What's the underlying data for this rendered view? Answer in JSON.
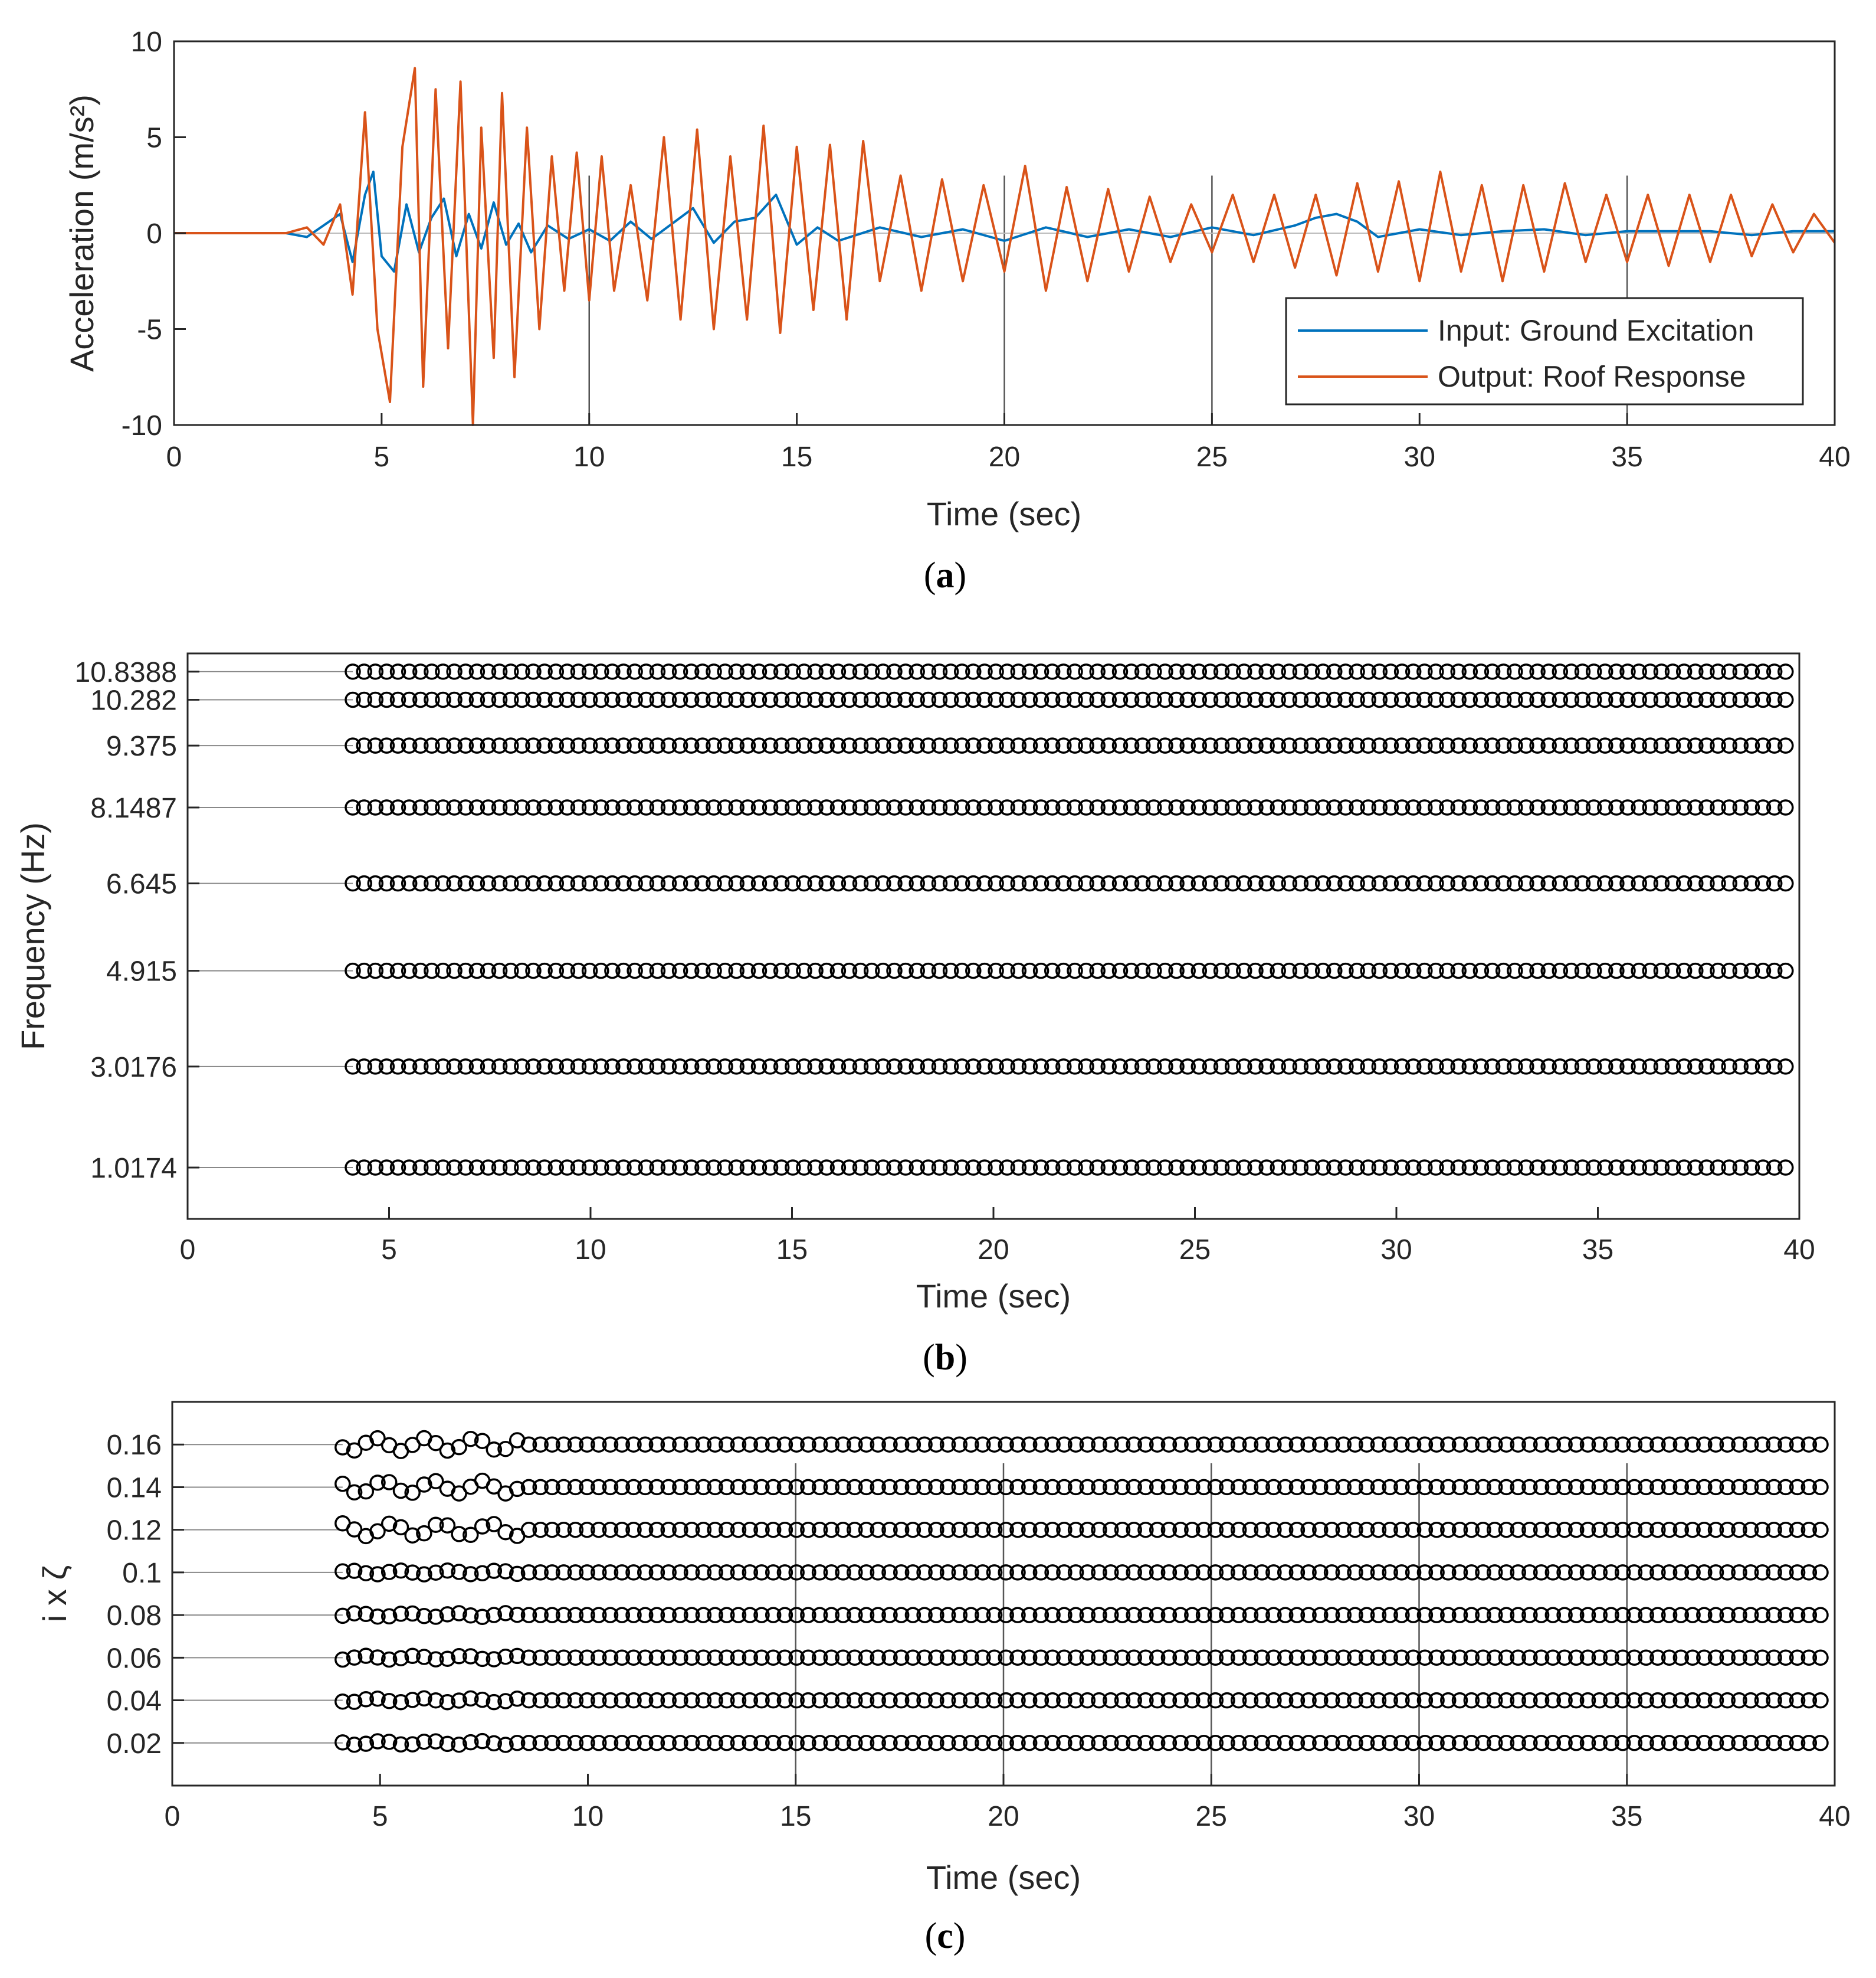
{
  "chart_data": [
    {
      "id": "a",
      "type": "line",
      "caption": "a",
      "xlabel": "Time (sec)",
      "ylabel": "Acceleration (m/s²)",
      "xlim": [
        0,
        40
      ],
      "ylim": [
        -10,
        10
      ],
      "xticks": [
        0,
        5,
        10,
        15,
        20,
        25,
        30,
        35,
        40
      ],
      "yticks": [
        -10,
        -5,
        0,
        5,
        10
      ],
      "vertical_markers": [
        10,
        20,
        25,
        35
      ],
      "legend_position": "bottom-right",
      "series": [
        {
          "name": "Input: Ground Excitation",
          "color": "#0072BD",
          "x": [
            0,
            2.7,
            3.2,
            3.6,
            4.0,
            4.3,
            4.6,
            4.8,
            5.0,
            5.3,
            5.6,
            5.9,
            6.2,
            6.5,
            6.8,
            7.1,
            7.4,
            7.7,
            8.0,
            8.3,
            8.6,
            9.0,
            9.5,
            10.0,
            10.5,
            11.0,
            11.5,
            12.0,
            12.5,
            13.0,
            13.5,
            14.0,
            14.5,
            15.0,
            15.5,
            16.0,
            17.0,
            18.0,
            19.0,
            20.0,
            21.0,
            22.0,
            23.0,
            24.0,
            25.0,
            26.0,
            27.0,
            27.5,
            28.0,
            28.5,
            29.0,
            30.0,
            31.0,
            32.0,
            33.0,
            34.0,
            35.0,
            36.0,
            37.0,
            38.0,
            39.0,
            40.0
          ],
          "values": [
            0,
            0,
            -0.2,
            0.4,
            1.0,
            -1.5,
            2.0,
            3.2,
            -1.2,
            -2.0,
            1.5,
            -1.0,
            0.8,
            1.8,
            -1.2,
            1.0,
            -0.8,
            1.6,
            -0.6,
            0.5,
            -1.0,
            0.4,
            -0.3,
            0.2,
            -0.4,
            0.6,
            -0.3,
            0.5,
            1.3,
            -0.5,
            0.6,
            0.8,
            2.0,
            -0.6,
            0.3,
            -0.4,
            0.3,
            -0.2,
            0.2,
            -0.4,
            0.3,
            -0.2,
            0.2,
            -0.2,
            0.3,
            -0.1,
            0.4,
            0.8,
            1.0,
            0.6,
            -0.2,
            0.2,
            -0.1,
            0.1,
            0.2,
            -0.1,
            0.1,
            0.1,
            0.1,
            -0.1,
            0.1,
            0.1
          ]
        },
        {
          "name": "Output: Roof Response",
          "color": "#D95319",
          "x": [
            0,
            2.7,
            3.2,
            3.6,
            4.0,
            4.3,
            4.6,
            4.9,
            5.2,
            5.5,
            5.8,
            6.0,
            6.3,
            6.6,
            6.9,
            7.2,
            7.4,
            7.7,
            7.9,
            8.2,
            8.5,
            8.8,
            9.1,
            9.4,
            9.7,
            10.0,
            10.3,
            10.6,
            11.0,
            11.4,
            11.8,
            12.2,
            12.6,
            13.0,
            13.4,
            13.8,
            14.2,
            14.6,
            15.0,
            15.4,
            15.8,
            16.2,
            16.6,
            17.0,
            17.5,
            18.0,
            18.5,
            19.0,
            19.5,
            20.0,
            20.5,
            21.0,
            21.5,
            22.0,
            22.5,
            23.0,
            23.5,
            24.0,
            24.5,
            25.0,
            25.5,
            26.0,
            26.5,
            27.0,
            27.5,
            28.0,
            28.5,
            29.0,
            29.5,
            30.0,
            30.5,
            31.0,
            31.5,
            32.0,
            32.5,
            33.0,
            33.5,
            34.0,
            34.5,
            35.0,
            35.5,
            36.0,
            36.5,
            37.0,
            37.5,
            38.0,
            38.5,
            39.0,
            39.5,
            40.0
          ],
          "values": [
            0,
            0,
            0.3,
            -0.6,
            1.5,
            -3.2,
            6.3,
            -5.0,
            -8.8,
            4.5,
            8.6,
            -8.0,
            7.5,
            -6.0,
            7.9,
            -10.0,
            5.5,
            -6.5,
            7.3,
            -7.5,
            5.5,
            -5.0,
            4.0,
            -3.0,
            4.2,
            -3.5,
            4.0,
            -3.0,
            2.5,
            -3.5,
            5.0,
            -4.5,
            5.4,
            -5.0,
            4.0,
            -4.5,
            5.6,
            -5.2,
            4.5,
            -4.0,
            4.6,
            -4.5,
            4.8,
            -2.5,
            3.0,
            -3.0,
            2.8,
            -2.5,
            2.5,
            -2.0,
            3.5,
            -3.0,
            2.4,
            -2.5,
            2.3,
            -2.0,
            1.9,
            -1.5,
            1.5,
            -1.0,
            2.0,
            -1.5,
            2.0,
            -1.8,
            2.0,
            -2.2,
            2.6,
            -2.0,
            2.7,
            -2.5,
            3.2,
            -2.0,
            2.5,
            -2.5,
            2.5,
            -2.0,
            2.6,
            -1.5,
            2.0,
            -1.5,
            2.0,
            -1.7,
            2.0,
            -1.5,
            2.0,
            -1.2,
            1.5,
            -1.0,
            1.0,
            -0.5
          ]
        }
      ]
    },
    {
      "id": "b",
      "type": "scatter",
      "caption": "b",
      "xlabel": "Time (sec)",
      "ylabel": "Frequency (Hz)",
      "xlim": [
        0,
        40
      ],
      "ylim": [
        0,
        11.2
      ],
      "xticks": [
        0,
        5,
        10,
        15,
        20,
        25,
        30,
        35,
        40
      ],
      "yticks": [
        1.0174,
        3.0176,
        4.915,
        6.645,
        8.1487,
        9.375,
        10.282,
        10.8388
      ],
      "ytick_labels": [
        "1.0174",
        "3.0176",
        "4.915",
        "6.645",
        "8.1487",
        "9.375",
        "10.282",
        "10.8388"
      ],
      "marker": "open-circle",
      "series_levels": [
        1.0174,
        3.0176,
        4.915,
        6.645,
        8.1487,
        9.375,
        10.282,
        10.8388
      ],
      "x_start": 4.1,
      "x_end": 39.9,
      "x_step": 0.28
    },
    {
      "id": "c",
      "type": "scatter",
      "caption": "c",
      "xlabel": "Time (sec)",
      "ylabel": "i x ζ",
      "xlim": [
        0,
        40
      ],
      "ylim": [
        0,
        0.18
      ],
      "xticks": [
        0,
        5,
        10,
        15,
        20,
        25,
        30,
        35,
        40
      ],
      "yticks": [
        0.02,
        0.04,
        0.06,
        0.08,
        0.1,
        0.12,
        0.14,
        0.16
      ],
      "ytick_labels": [
        "0.02",
        "0.04",
        "0.06",
        "0.08",
        "0.1",
        "0.12",
        "0.14",
        "0.16"
      ],
      "vertical_markers": [
        15,
        20,
        25,
        30,
        35
      ],
      "marker": "open-circle",
      "series_levels": [
        0.02,
        0.04,
        0.06,
        0.08,
        0.1,
        0.12,
        0.14,
        0.16
      ],
      "x_start": 4.1,
      "x_end": 39.9,
      "x_step": 0.28
    }
  ]
}
